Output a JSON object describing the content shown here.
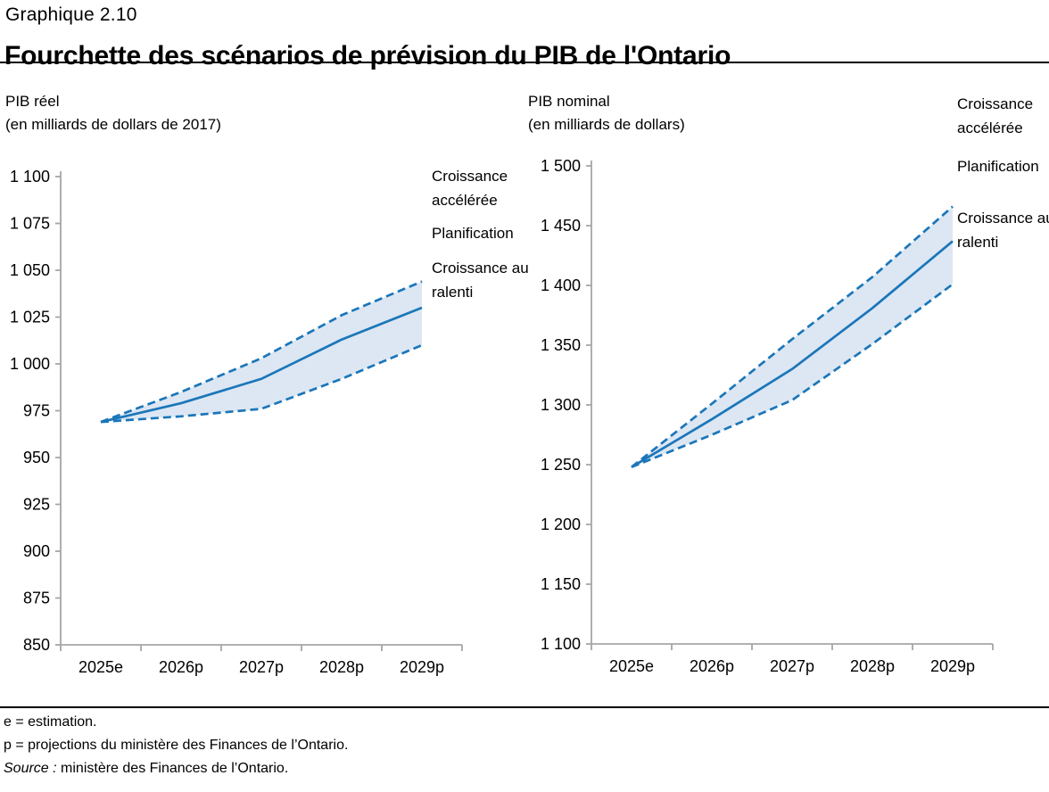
{
  "header": {
    "kicker": "Graphique 2.10",
    "title": "Fourchette des scénarios de prévision du PIB de l'Ontario"
  },
  "footnotes": [
    "e = estimation.",
    "p = projections du ministère des Finances de l’Ontario."
  ],
  "source": {
    "label": "Source :",
    "text": " ministère des Finances de l’Ontario."
  },
  "colors": {
    "line": "#1b76b9",
    "band": "#dce7f3",
    "axis": "#a6a6a6",
    "text": "#000000"
  },
  "chart_data": [
    {
      "id": "pib-reel",
      "type": "line",
      "title": "PIB réel",
      "subtitle": "(en milliards de dollars de 2017)",
      "categories": [
        "2025e",
        "2026p",
        "2027p",
        "2028p",
        "2029p"
      ],
      "series": [
        {
          "name": "Croissance accélérée",
          "style": "dashed",
          "values": [
            969,
            985,
            1003,
            1026,
            1044
          ]
        },
        {
          "name": "Planification",
          "style": "solid",
          "values": [
            969,
            979,
            992,
            1013,
            1030
          ]
        },
        {
          "name": "Croissance au ralenti",
          "style": "dashed",
          "values": [
            969,
            972,
            976,
            992,
            1010
          ]
        }
      ],
      "ylim": [
        850,
        1100
      ],
      "ytick_step": 25,
      "band_between": [
        0,
        2
      ],
      "grid": false,
      "legend_position": "right-of-line-ends"
    },
    {
      "id": "pib-nominal",
      "type": "line",
      "title": "PIB nominal",
      "subtitle": "(en milliards de dollars)",
      "categories": [
        "2025e",
        "2026p",
        "2027p",
        "2028p",
        "2029p"
      ],
      "series": [
        {
          "name": "Croissance accélérée",
          "style": "dashed",
          "values": [
            1248,
            1301,
            1355,
            1407,
            1466
          ]
        },
        {
          "name": "Planification",
          "style": "solid",
          "values": [
            1248,
            1288,
            1330,
            1381,
            1437
          ]
        },
        {
          "name": "Croissance au ralenti",
          "style": "dashed",
          "values": [
            1248,
            1275,
            1304,
            1351,
            1401
          ]
        }
      ],
      "ylim": [
        1100,
        1500
      ],
      "ytick_step": 50,
      "band_between": [
        0,
        2
      ],
      "grid": false,
      "legend_position": "right-of-line-ends"
    }
  ]
}
